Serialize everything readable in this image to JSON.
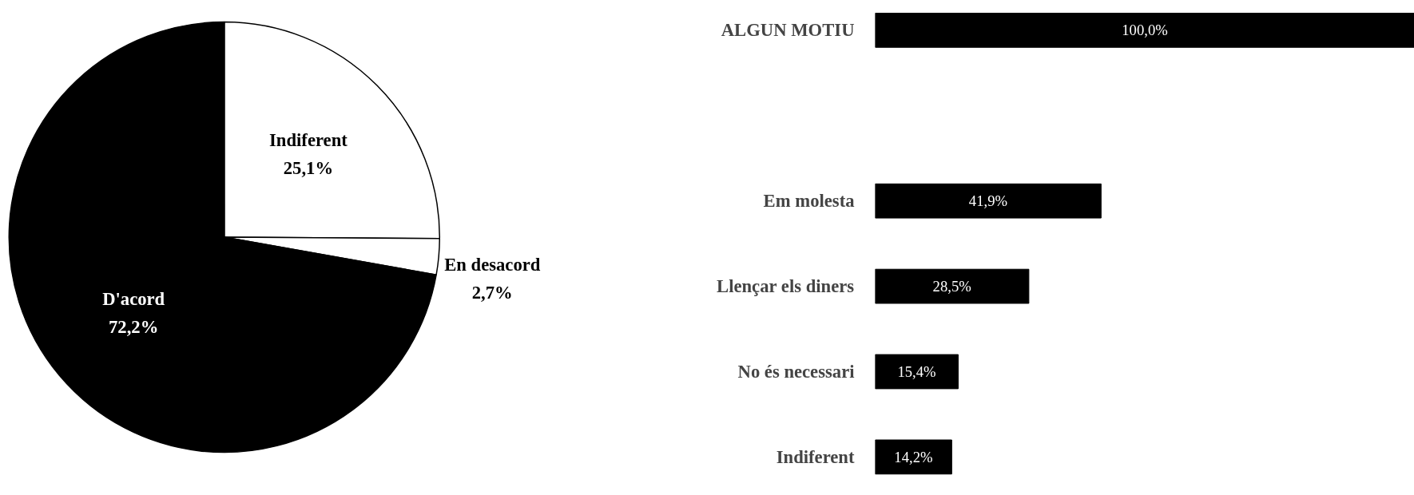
{
  "chart_data": [
    {
      "type": "pie",
      "categories": [
        "Indiferent",
        "En desacord",
        "D'acord"
      ],
      "values": [
        25.1,
        2.7,
        72.2
      ],
      "colors": [
        "#ffffff",
        "#ffffff",
        "#000000"
      ],
      "value_labels": [
        "25,1%",
        "2,7%",
        "72,2%"
      ]
    },
    {
      "type": "bar",
      "orientation": "horizontal",
      "categories": [
        "ALGUN MOTIU",
        "Em molesta",
        "Llençar els diners",
        "No és necessari",
        "Indiferent"
      ],
      "values": [
        100,
        41.9,
        28.5,
        15.4,
        14.2
      ],
      "color": "#000000",
      "value_labels": [
        "100,0%",
        "41,9%",
        "28,5%",
        "15,4%",
        "14,2%"
      ]
    }
  ]
}
